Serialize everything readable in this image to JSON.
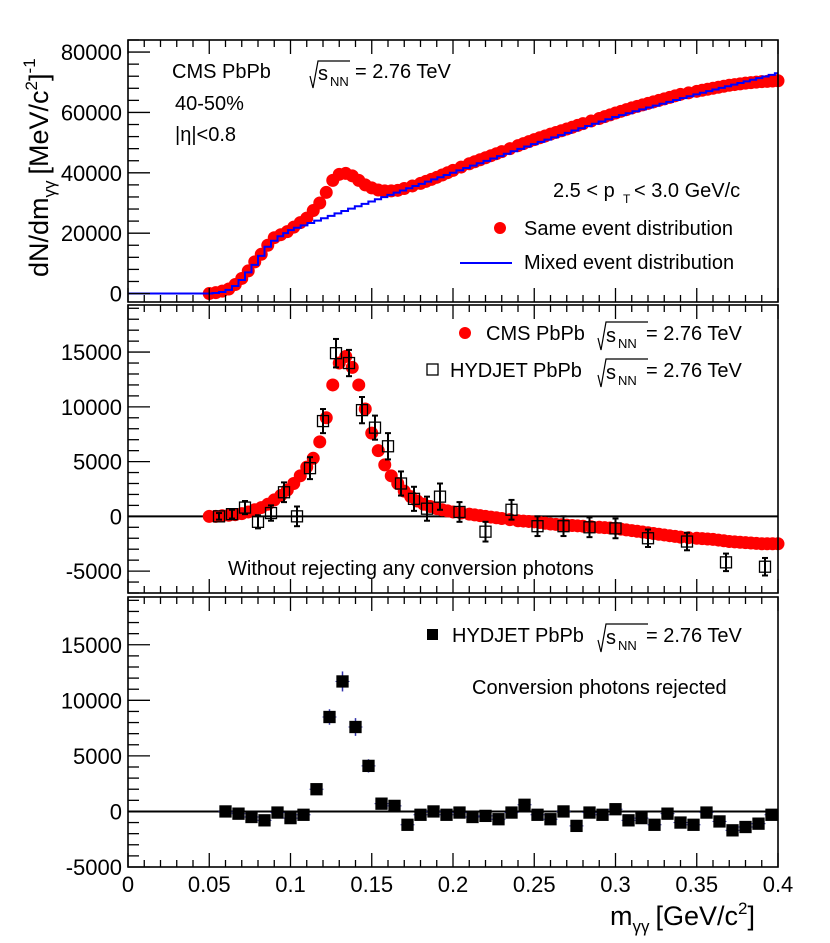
{
  "chart_data": [
    {
      "type": "scatter",
      "panel": "top",
      "title": "",
      "xlabel": "",
      "ylabel": "dN/dm_γγ [MeV/c²]⁻¹",
      "ylabel_parts": {
        "main": "dN/dm",
        "sub": "γγ",
        "bracket": "[MeV/c",
        "sup": "2",
        "close": "]",
        "exp": "-1"
      },
      "xlim": [
        0,
        0.4
      ],
      "ylim": [
        -2800,
        84000
      ],
      "yticks": [
        0,
        20000,
        40000,
        60000,
        80000
      ],
      "ytick_labels": [
        "0",
        "20000",
        "40000",
        "60000",
        "80000"
      ],
      "grid": false,
      "annotations": {
        "line1_prefix": "CMS PbPb",
        "sqrt_s_symbol": "s",
        "sqrt_s_sub": "NN",
        "line1_suffix": "= 2.76 TeV",
        "centrality": "40-50%",
        "eta_cut": "|η|<0.8",
        "pt_bin_pre": "2.5 < p",
        "pt_bin_sub": "T",
        "pt_bin_post": "< 3.0 GeV/c"
      },
      "legend": {
        "placement": "bottom-right",
        "entries": [
          {
            "label": "Same event distribution",
            "marker": "circle",
            "color": "#ff0000"
          },
          {
            "label": "Mixed event distribution",
            "marker": "line",
            "color": "#0000ff"
          }
        ]
      },
      "series": [
        {
          "name": "Same event distribution",
          "style": "markers",
          "color": "#ff0000",
          "x": [
            0.05,
            0.054,
            0.058,
            0.062,
            0.066,
            0.07,
            0.074,
            0.078,
            0.082,
            0.086,
            0.09,
            0.094,
            0.098,
            0.102,
            0.106,
            0.11,
            0.114,
            0.118,
            0.122,
            0.126,
            0.13,
            0.134,
            0.138,
            0.142,
            0.146,
            0.15,
            0.154,
            0.158,
            0.162,
            0.166,
            0.17,
            0.18,
            0.19,
            0.2,
            0.21,
            0.22,
            0.23,
            0.24,
            0.25,
            0.26,
            0.27,
            0.28,
            0.29,
            0.3,
            0.31,
            0.32,
            0.33,
            0.34,
            0.35,
            0.36,
            0.37,
            0.38,
            0.39,
            0.4
          ],
          "y": [
            0,
            300,
            800,
            1500,
            3000,
            5000,
            7500,
            10500,
            13000,
            16000,
            18500,
            19500,
            20500,
            22000,
            23500,
            25000,
            27500,
            30000,
            33500,
            37500,
            39500,
            39800,
            39000,
            37500,
            36000,
            35000,
            34300,
            34000,
            34000,
            34200,
            34800,
            36500,
            38500,
            40800,
            43000,
            45000,
            47000,
            49000,
            51000,
            52800,
            54500,
            56300,
            58000,
            59800,
            61500,
            63000,
            64500,
            66000,
            67000,
            68000,
            69000,
            69700,
            70200,
            70500
          ]
        },
        {
          "name": "Mixed event distribution",
          "style": "step",
          "color": "#0000ff",
          "x": [
            0.0,
            0.05,
            0.054,
            0.058,
            0.062,
            0.066,
            0.07,
            0.074,
            0.078,
            0.082,
            0.086,
            0.09,
            0.094,
            0.1,
            0.15,
            0.2,
            0.25,
            0.3,
            0.35,
            0.4
          ],
          "y": [
            0,
            0,
            200,
            500,
            1200,
            2500,
            4500,
            7000,
            9500,
            12500,
            15500,
            17500,
            19000,
            21000,
            30500,
            40000,
            49500,
            58500,
            66000,
            73000
          ]
        }
      ]
    },
    {
      "type": "scatter",
      "panel": "middle",
      "xlabel": "",
      "ylabel": "",
      "xlim": [
        0,
        0.4
      ],
      "ylim": [
        -7000,
        19300
      ],
      "yticks": [
        -5000,
        0,
        5000,
        10000,
        15000
      ],
      "ytick_labels": [
        "-5000",
        "0",
        "5000",
        "10000",
        "15000"
      ],
      "grid": false,
      "zero_line": true,
      "annotation": "Without rejecting any conversion photons",
      "legend": {
        "placement": "top-right",
        "entries": [
          {
            "prefix": "CMS PbPb",
            "sqrt": "s",
            "sub": "NN",
            "suffix": "= 2.76 TeV",
            "marker": "circle",
            "color": "#ff0000"
          },
          {
            "prefix": "HYDJET PbPb",
            "sqrt": "s",
            "sub": "NN",
            "suffix": "= 2.76 TeV",
            "marker": "open-square",
            "color": "#000000"
          }
        ]
      },
      "series": [
        {
          "name": "CMS PbPb √sNN = 2.76 TeV",
          "style": "markers",
          "color": "#ff0000",
          "x": [
            0.05,
            0.054,
            0.058,
            0.062,
            0.066,
            0.07,
            0.074,
            0.078,
            0.082,
            0.086,
            0.09,
            0.094,
            0.098,
            0.102,
            0.106,
            0.11,
            0.114,
            0.118,
            0.122,
            0.126,
            0.13,
            0.134,
            0.138,
            0.142,
            0.146,
            0.15,
            0.154,
            0.158,
            0.162,
            0.166,
            0.17,
            0.174,
            0.178,
            0.182,
            0.186,
            0.19,
            0.2,
            0.21,
            0.22,
            0.23,
            0.24,
            0.25,
            0.26,
            0.27,
            0.28,
            0.29,
            0.3,
            0.31,
            0.32,
            0.33,
            0.34,
            0.35,
            0.36,
            0.37,
            0.38,
            0.39,
            0.4
          ],
          "y": [
            0,
            0,
            50,
            100,
            150,
            250,
            400,
            600,
            800,
            1100,
            1500,
            1900,
            2400,
            3000,
            3700,
            4500,
            5300,
            6800,
            9000,
            12000,
            14000,
            14600,
            13600,
            12000,
            9800,
            7600,
            6000,
            4700,
            3700,
            3000,
            2300,
            1800,
            1400,
            1100,
            900,
            700,
            400,
            200,
            0,
            -200,
            -400,
            -500,
            -700,
            -800,
            -900,
            -1000,
            -1100,
            -1300,
            -1500,
            -1700,
            -1900,
            -2000,
            -2100,
            -2300,
            -2400,
            -2500,
            -2500
          ]
        },
        {
          "name": "HYDJET PbPb √sNN = 2.76 TeV",
          "style": "open-squares-with-errors",
          "color": "#000000",
          "x": [
            0.056,
            0.064,
            0.072,
            0.08,
            0.088,
            0.096,
            0.104,
            0.112,
            0.12,
            0.128,
            0.136,
            0.144,
            0.152,
            0.16,
            0.168,
            0.176,
            0.184,
            0.192,
            0.204,
            0.22,
            0.236,
            0.252,
            0.268,
            0.284,
            0.3,
            0.32,
            0.344,
            0.368,
            0.392
          ],
          "y": [
            0,
            200,
            800,
            -500,
            300,
            2200,
            0,
            4400,
            8700,
            14900,
            14000,
            9700,
            8100,
            6400,
            3000,
            1600,
            700,
            1800,
            400,
            -1400,
            600,
            -900,
            -900,
            -1000,
            -1100,
            -2000,
            -2300,
            -4200,
            -4600
          ],
          "err": [
            300,
            400,
            600,
            600,
            700,
            900,
            900,
            1000,
            1100,
            1300,
            1200,
            1200,
            1100,
            1200,
            1100,
            1100,
            1100,
            1200,
            900,
            900,
            900,
            900,
            900,
            900,
            900,
            800,
            800,
            800,
            800
          ]
        }
      ]
    },
    {
      "type": "scatter",
      "panel": "bottom",
      "xlabel": "m_γγ [GeV/c²]",
      "xlabel_parts": {
        "main": "m",
        "sub": "γγ",
        "bracket": "[GeV/c",
        "sup": "2",
        "close": "]"
      },
      "ylabel": "",
      "xlim": [
        0,
        0.4
      ],
      "ylim": [
        -5000,
        19300
      ],
      "xticks": [
        0,
        0.05,
        0.1,
        0.15,
        0.2,
        0.25,
        0.3,
        0.35,
        0.4
      ],
      "xtick_labels": [
        "0",
        "0.05",
        "0.1",
        "0.15",
        "0.2",
        "0.25",
        "0.3",
        "0.35",
        "0.4"
      ],
      "yticks": [
        -5000,
        0,
        5000,
        10000,
        15000
      ],
      "ytick_labels": [
        "-5000",
        "0",
        "5000",
        "10000",
        "15000"
      ],
      "grid": false,
      "zero_line": true,
      "annotation": "Conversion photons rejected",
      "legend": {
        "placement": "top-right",
        "entries": [
          {
            "prefix": "HYDJET PbPb",
            "sqrt": "s",
            "sub": "NN",
            "suffix": "= 2.76 TeV",
            "marker": "filled-square",
            "color": "#000000"
          }
        ]
      },
      "series": [
        {
          "name": "HYDJET PbPb √sNN = 2.76 TeV",
          "style": "filled-squares-with-errors",
          "color": "#000000",
          "err_color": "#3333aa",
          "x": [
            0.06,
            0.068,
            0.076,
            0.084,
            0.092,
            0.1,
            0.108,
            0.116,
            0.124,
            0.132,
            0.14,
            0.148,
            0.156,
            0.164,
            0.172,
            0.18,
            0.188,
            0.196,
            0.204,
            0.212,
            0.22,
            0.228,
            0.236,
            0.244,
            0.252,
            0.26,
            0.268,
            0.276,
            0.284,
            0.292,
            0.3,
            0.308,
            0.316,
            0.324,
            0.332,
            0.34,
            0.348,
            0.356,
            0.364,
            0.372,
            0.38,
            0.388,
            0.396
          ],
          "y": [
            0,
            -200,
            -500,
            -800,
            -100,
            -600,
            -300,
            2000,
            8500,
            11700,
            7600,
            4100,
            700,
            500,
            -1200,
            -300,
            0,
            -300,
            -100,
            -500,
            -400,
            -700,
            -100,
            600,
            -300,
            -700,
            0,
            -1300,
            -100,
            -300,
            200,
            -800,
            -600,
            -1200,
            -200,
            -1000,
            -1200,
            -100,
            -900,
            -1700,
            -1400,
            -1100,
            -300
          ],
          "err": [
            400,
            400,
            400,
            400,
            400,
            400,
            400,
            500,
            700,
            900,
            800,
            600,
            500,
            500,
            500,
            500,
            500,
            500,
            500,
            500,
            500,
            500,
            500,
            500,
            500,
            500,
            500,
            500,
            500,
            500,
            500,
            500,
            500,
            500,
            500,
            500,
            500,
            500,
            500,
            500,
            500,
            500,
            500
          ]
        }
      ]
    }
  ]
}
